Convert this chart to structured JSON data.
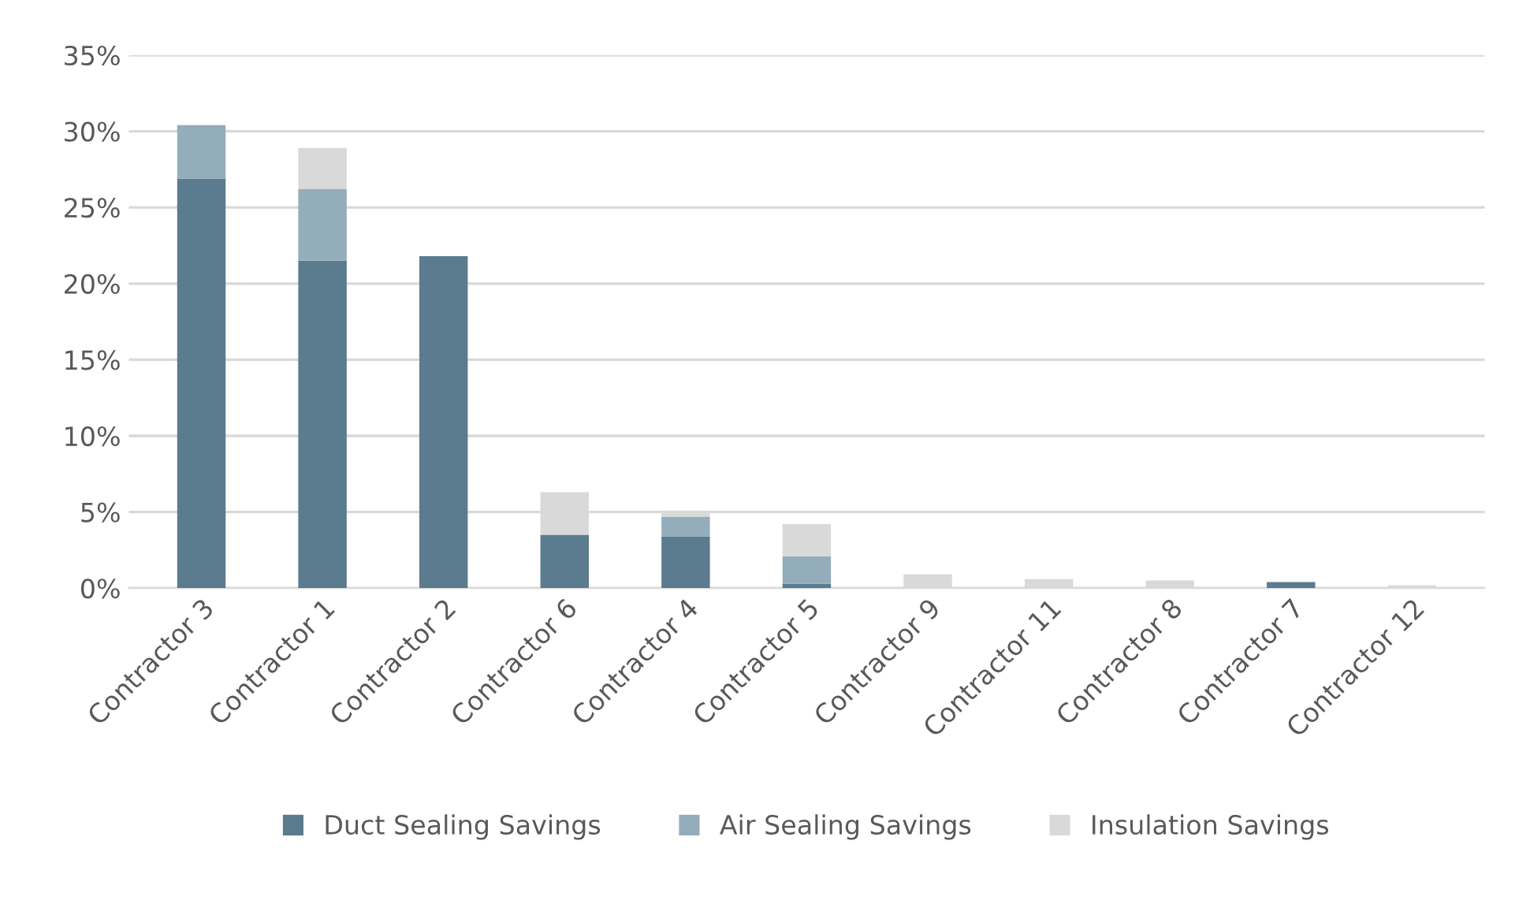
{
  "chart_data": {
    "type": "bar",
    "stacked": true,
    "categories": [
      "Contractor 3",
      "Contractor 1",
      "Contractor 2",
      "Contractor 6",
      "Contractor 4",
      "Contractor 5",
      "Contractor 9",
      "Contractor 11",
      "Contractor 8",
      "Contractor 7",
      "Contractor 12"
    ],
    "series": [
      {
        "name": "Duct Sealing Savings",
        "color": "#5b7b8e",
        "values": [
          26.9,
          21.5,
          21.8,
          3.5,
          3.4,
          0.3,
          0,
          0,
          0,
          0.4,
          0
        ]
      },
      {
        "name": "Air Sealing Savings",
        "color": "#93adbb",
        "values": [
          3.5,
          4.7,
          0,
          0,
          1.3,
          1.8,
          0,
          0,
          0,
          0,
          0
        ]
      },
      {
        "name": "Insulation Savings",
        "color": "#d9d9d9",
        "values": [
          0,
          2.7,
          0,
          2.8,
          0.4,
          2.1,
          0.9,
          0.6,
          0.5,
          0,
          0.2
        ]
      }
    ],
    "ylim": [
      0,
      35
    ],
    "yticks": [
      {
        "value": 0,
        "label": "0%"
      },
      {
        "value": 5,
        "label": "5%"
      },
      {
        "value": 10,
        "label": "10%"
      },
      {
        "value": 15,
        "label": "15%"
      },
      {
        "value": 20,
        "label": "20%"
      },
      {
        "value": 25,
        "label": "25%"
      },
      {
        "value": 30,
        "label": "30%"
      },
      {
        "value": 35,
        "label": "35%"
      }
    ],
    "grid": "y",
    "legend": "bottom"
  }
}
